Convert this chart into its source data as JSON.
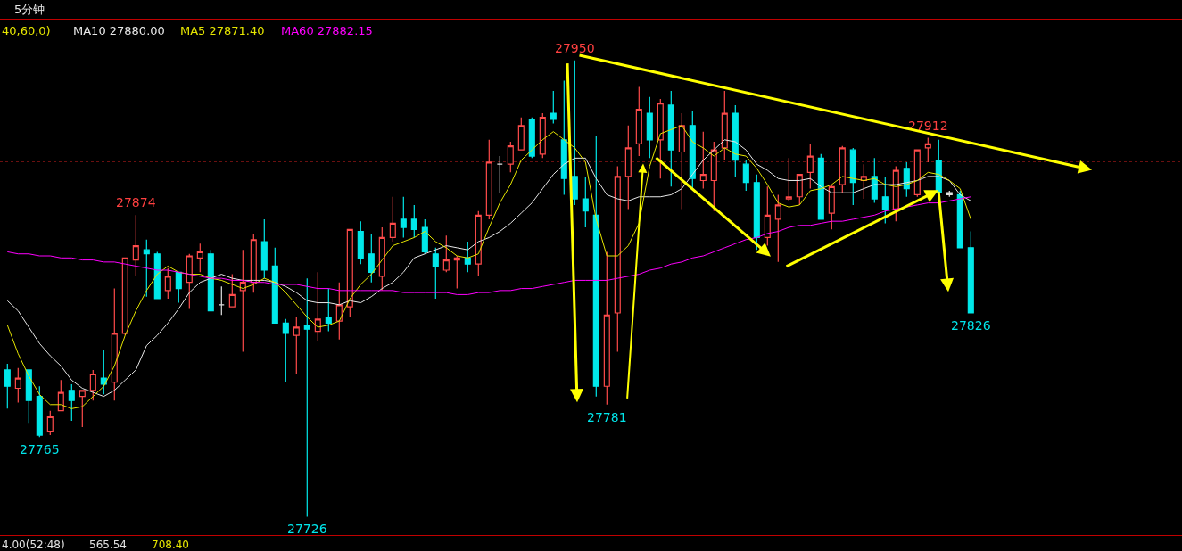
{
  "chart_data": {
    "type": "candlestick",
    "title": "5分钟",
    "categories": [
      null,
      null,
      null,
      null,
      null,
      null,
      null,
      null,
      null,
      null,
      null,
      null,
      null,
      null,
      null,
      null,
      null,
      null,
      null,
      null,
      null,
      null,
      null,
      null,
      null,
      null,
      null,
      null,
      null,
      null,
      null,
      null,
      null,
      null,
      null,
      null,
      null,
      null,
      null,
      null,
      null,
      null,
      null,
      null,
      null,
      null,
      null,
      null,
      null,
      null,
      null,
      null,
      null,
      null,
      null,
      null,
      null,
      null,
      null,
      null,
      null,
      null,
      null,
      null,
      null,
      null,
      null,
      null,
      null,
      null,
      null,
      null,
      null,
      null,
      null,
      null,
      null,
      null,
      null,
      null,
      null,
      null,
      null,
      null,
      null,
      null,
      null,
      null,
      null,
      null,
      null
    ],
    "ohlc": [
      [
        27798,
        27801,
        27779,
        27790
      ],
      [
        27789,
        27799,
        27782,
        27794
      ],
      [
        27798,
        27798,
        27772,
        27783
      ],
      [
        27785,
        27790,
        27765,
        27766
      ],
      [
        27768,
        27778,
        27766,
        27775
      ],
      [
        27778,
        27793,
        27778,
        27787
      ],
      [
        27788,
        27791,
        27773,
        27783
      ],
      [
        27785,
        27788,
        27770,
        27788
      ],
      [
        27788,
        27798,
        27783,
        27796
      ],
      [
        27794,
        27808,
        27786,
        27791
      ],
      [
        27792,
        27838,
        27783,
        27816
      ],
      [
        27816,
        27853,
        27815,
        27853
      ],
      [
        27852,
        27874,
        27844,
        27859
      ],
      [
        27857,
        27862,
        27834,
        27855
      ],
      [
        27855,
        27856,
        27833,
        27833
      ],
      [
        27837,
        27848,
        27833,
        27844
      ],
      [
        27846,
        27846,
        27831,
        27838
      ],
      [
        27841,
        27855,
        27828,
        27854
      ],
      [
        27853,
        27860,
        27846,
        27856
      ],
      [
        27855,
        27857,
        27827,
        27827
      ],
      [
        27830,
        27839,
        27825,
        27830
      ],
      [
        27829,
        27845,
        27829,
        27835
      ],
      [
        27837,
        27857,
        27807,
        27841
      ],
      [
        27841,
        27865,
        27836,
        27862
      ],
      [
        27861,
        27872,
        27843,
        27847
      ],
      [
        27849,
        27858,
        27821,
        27821
      ],
      [
        27821,
        27823,
        27792,
        27816
      ],
      [
        27815,
        27824,
        27796,
        27819
      ],
      [
        27820,
        27843,
        27726,
        27818
      ],
      [
        27817,
        27846,
        27812,
        27823
      ],
      [
        27824,
        27838,
        27817,
        27821
      ],
      [
        27822,
        27841,
        27813,
        27830
      ],
      [
        27829,
        27867,
        27824,
        27867
      ],
      [
        27866,
        27871,
        27850,
        27853
      ],
      [
        27855,
        27865,
        27841,
        27846
      ],
      [
        27844,
        27868,
        27837,
        27863
      ],
      [
        27863,
        27883,
        27861,
        27870
      ],
      [
        27872,
        27883,
        27863,
        27868
      ],
      [
        27872,
        27879,
        27863,
        27867
      ],
      [
        27868,
        27872,
        27855,
        27856
      ],
      [
        27855,
        27858,
        27833,
        27849
      ],
      [
        27847,
        27864,
        27846,
        27852
      ],
      [
        27852,
        27854,
        27838,
        27853
      ],
      [
        27853,
        27861,
        27846,
        27850
      ],
      [
        27850,
        27876,
        27844,
        27874
      ],
      [
        27874,
        27911,
        27872,
        27900
      ],
      [
        27899,
        27903,
        27885,
        27899
      ],
      [
        27899,
        27910,
        27895,
        27908
      ],
      [
        27906,
        27922,
        27906,
        27918
      ],
      [
        27921,
        27922,
        27902,
        27903
      ],
      [
        27904,
        27924,
        27902,
        27922
      ],
      [
        27924,
        27935,
        27919,
        27921
      ],
      [
        27911,
        27940,
        27884,
        27892
      ],
      [
        27893,
        27950,
        27879,
        27882
      ],
      [
        27882,
        27893,
        27868,
        27876
      ],
      [
        27874,
        27913,
        27785,
        27790
      ],
      [
        27790,
        27856,
        27781,
        27825
      ],
      [
        27826,
        27898,
        27807,
        27893
      ],
      [
        27893,
        27918,
        27877,
        27907
      ],
      [
        27909,
        27937,
        27903,
        27926
      ],
      [
        27924,
        27932,
        27902,
        27911
      ],
      [
        27911,
        27931,
        27892,
        27929
      ],
      [
        27928,
        27935,
        27888,
        27906
      ],
      [
        27905,
        27924,
        27877,
        27918
      ],
      [
        27918,
        27925,
        27887,
        27892
      ],
      [
        27891,
        27915,
        27887,
        27894
      ],
      [
        27891,
        27910,
        27876,
        27906
      ],
      [
        27907,
        27935,
        27901,
        27924
      ],
      [
        27924,
        27928,
        27893,
        27901
      ],
      [
        27899,
        27901,
        27886,
        27890
      ],
      [
        27890,
        27894,
        27857,
        27863
      ],
      [
        27863,
        27888,
        27859,
        27874
      ],
      [
        27872,
        27884,
        27851,
        27879
      ],
      [
        27882,
        27902,
        27881,
        27883
      ],
      [
        27883,
        27894,
        27879,
        27894
      ],
      [
        27895,
        27909,
        27887,
        27903
      ],
      [
        27902,
        27904,
        27872,
        27872
      ],
      [
        27875,
        27889,
        27867,
        27888
      ],
      [
        27889,
        27908,
        27885,
        27907
      ],
      [
        27906,
        27907,
        27879,
        27890
      ],
      [
        27891,
        27899,
        27882,
        27893
      ],
      [
        27893,
        27902,
        27880,
        27882
      ],
      [
        27883,
        27893,
        27870,
        27877
      ],
      [
        27877,
        27898,
        27871,
        27896
      ],
      [
        27897,
        27900,
        27883,
        27887
      ],
      [
        27884,
        27906,
        27883,
        27906
      ],
      [
        27907,
        27912,
        27900,
        27909
      ],
      [
        27901,
        27911,
        27885,
        27885
      ],
      [
        27884,
        27886,
        27883,
        27885
      ],
      [
        27884,
        27886,
        27858,
        27858
      ],
      [
        27858,
        27866,
        27826,
        27826
      ]
    ],
    "colors": [
      "#00e8ea",
      "#ff4b4b",
      "#00e8ea",
      "#00e8ea",
      "#ff4b4b",
      "#ff4b4b",
      "#00e8ea",
      "#ff4b4b",
      "#ff4b4b",
      "#00e8ea",
      "#ff4b4b",
      "#ff4b4b",
      "#ff4b4b",
      "#00e8ea",
      "#00e8ea",
      "#ff4b4b",
      "#00e8ea",
      "#ff4b4b",
      "#ff4b4b",
      "#00e8ea",
      "#e0e0e0",
      "#ff4b4b",
      "#ff4b4b",
      "#ff4b4b",
      "#00e8ea",
      "#00e8ea",
      "#00e8ea",
      "#ff4b4b",
      "#00e8ea",
      "#ff4b4b",
      "#00e8ea",
      "#ff4b4b",
      "#ff4b4b",
      "#00e8ea",
      "#00e8ea",
      "#ff4b4b",
      "#ff4b4b",
      "#00e8ea",
      "#00e8ea",
      "#00e8ea",
      "#00e8ea",
      "#ff4b4b",
      "#ff4b4b",
      "#00e8ea",
      "#ff4b4b",
      "#ff4b4b",
      "#e0e0e0",
      "#ff4b4b",
      "#ff4b4b",
      "#00e8ea",
      "#ff4b4b",
      "#00e8ea",
      "#00e8ea",
      "#00e8ea",
      "#00e8ea",
      "#00e8ea",
      "#ff4b4b",
      "#ff4b4b",
      "#ff4b4b",
      "#ff4b4b",
      "#00e8ea",
      "#ff4b4b",
      "#00e8ea",
      "#ff4b4b",
      "#00e8ea",
      "#ff4b4b",
      "#ff4b4b",
      "#ff4b4b",
      "#00e8ea",
      "#00e8ea",
      "#00e8ea",
      "#ff4b4b",
      "#ff4b4b",
      "#ff4b4b",
      "#ff4b4b",
      "#ff4b4b",
      "#00e8ea",
      "#ff4b4b",
      "#ff4b4b",
      "#00e8ea",
      "#ff4b4b",
      "#00e8ea",
      "#00e8ea",
      "#ff4b4b",
      "#00e8ea",
      "#ff4b4b",
      "#ff4b4b",
      "#00e8ea",
      "#e0e0e0",
      "#00e8ea",
      "#00e8ea"
    ],
    "series": [
      {
        "name": "MA10 27880.00",
        "type": "line",
        "color": "#e8e8e8",
        "values": [
          27832,
          27827,
          27819,
          27811,
          27805,
          27800,
          27793,
          27789,
          27787,
          27785,
          27788,
          27793,
          27798,
          27810,
          27815,
          27821,
          27828,
          27836,
          27841,
          27843,
          27845,
          27843,
          27842,
          27842,
          27842,
          27841,
          27839,
          27836,
          27832,
          27831,
          27831,
          27830,
          27832,
          27831,
          27834,
          27838,
          27841,
          27846,
          27853,
          27855,
          27857,
          27859,
          27858,
          27857,
          27861,
          27863,
          27866,
          27870,
          27875,
          27880,
          27887,
          27894,
          27899,
          27902,
          27902,
          27892,
          27884,
          27882,
          27881,
          27883,
          27883,
          27883,
          27884,
          27887,
          27894,
          27901,
          27906,
          27911,
          27910,
          27906,
          27899,
          27896,
          27892,
          27891,
          27891,
          27892,
          27888,
          27885,
          27885,
          27885,
          27887,
          27889,
          27889,
          27889,
          27890,
          27891,
          27893,
          27893,
          27891,
          27884,
          27881
        ]
      },
      {
        "name": "MA5 27871.40",
        "type": "line",
        "color": "#e6e600",
        "values": [
          27820,
          27806,
          27795,
          27786,
          27781,
          27781,
          27779,
          27780,
          27785,
          27790,
          27800,
          27815,
          27827,
          27837,
          27845,
          27849,
          27846,
          27845,
          27845,
          27843,
          27842,
          27840,
          27838,
          27840,
          27843,
          27841,
          27836,
          27830,
          27824,
          27819,
          27820,
          27822,
          27833,
          27840,
          27845,
          27852,
          27859,
          27861,
          27863,
          27866,
          27861,
          27858,
          27854,
          27853,
          27855,
          27868,
          27880,
          27889,
          27901,
          27906,
          27911,
          27915,
          27911,
          27907,
          27900,
          27872,
          27854,
          27854,
          27859,
          27870,
          27898,
          27914,
          27916,
          27918,
          27910,
          27907,
          27903,
          27907,
          27904,
          27903,
          27897,
          27889,
          27880,
          27878,
          27879,
          27886,
          27887,
          27889,
          27893,
          27892,
          27891,
          27892,
          27889,
          27888,
          27889,
          27891,
          27895,
          27894,
          27891,
          27887,
          27872
        ]
      },
      {
        "name": "MA60 27882.15",
        "type": "line",
        "color": "#ff00ff",
        "values": [
          27856,
          27855,
          27855,
          27854,
          27854,
          27853,
          27853,
          27852,
          27852,
          27851,
          27851,
          27850,
          27849,
          27848,
          27847,
          27847,
          27846,
          27845,
          27844,
          27843,
          27843,
          27842,
          27842,
          27841,
          27841,
          27840,
          27840,
          27840,
          27839,
          27838,
          27838,
          27837,
          27837,
          27837,
          27837,
          27837,
          27837,
          27836,
          27836,
          27836,
          27836,
          27836,
          27835,
          27835,
          27836,
          27836,
          27837,
          27837,
          27838,
          27838,
          27839,
          27840,
          27841,
          27842,
          27842,
          27842,
          27842,
          27843,
          27844,
          27845,
          27847,
          27848,
          27850,
          27851,
          27853,
          27854,
          27856,
          27858,
          27860,
          27862,
          27863,
          27865,
          27866,
          27868,
          27869,
          27869,
          27870,
          27871,
          27871,
          27872,
          27873,
          27874,
          27876,
          27877,
          27878,
          27879,
          27880,
          27880,
          27881,
          27882,
          27883
        ]
      }
    ],
    "ylim": [
      27717,
      27970
    ],
    "yticks": [
      {
        "value": 27800,
        "label": null
      },
      {
        "value": 27900,
        "label": null
      }
    ],
    "grid": "y",
    "annotations": [
      "40,60,0)",
      "4.00(52:48)",
      "565.54",
      "708.40",
      {
        "text": "27950",
        "y": 27950
      },
      {
        "text": "27874",
        "y": 27874
      },
      {
        "text": "27765",
        "y": 27765
      },
      {
        "text": "27726",
        "y": 27726
      },
      {
        "text": "27781",
        "y": 27781
      },
      {
        "text": "27912",
        "y": 27912
      },
      {
        "text": "27826",
        "y": 27826
      }
    ]
  }
}
